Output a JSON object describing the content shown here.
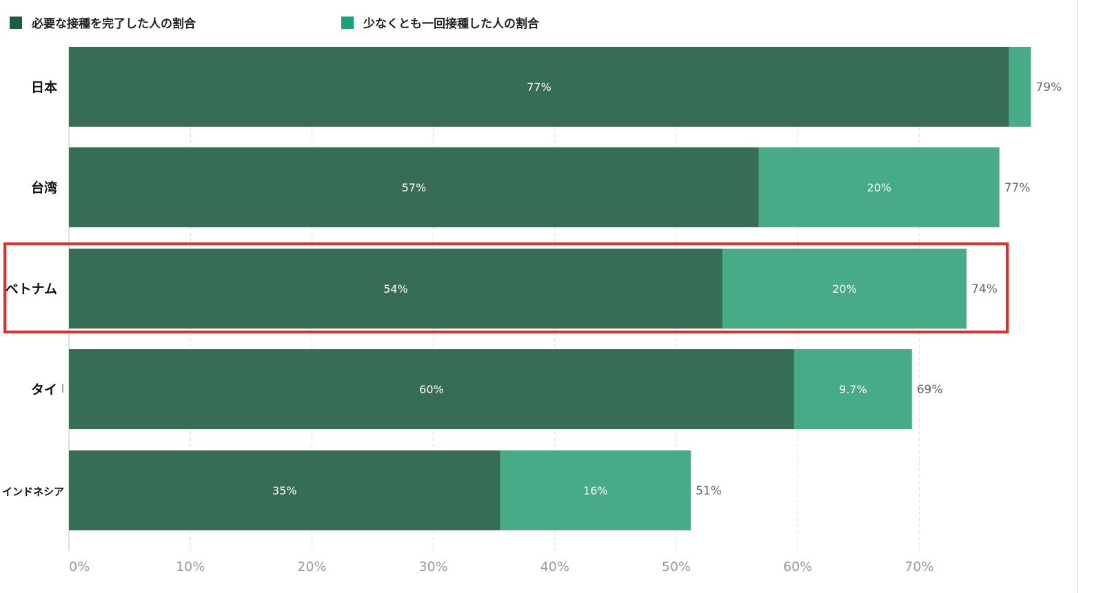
{
  "legend": [
    {
      "label": "必要な接種を完了した人の割合",
      "color": "#1b5e3f"
    },
    {
      "label": "少なくとも一回接種した人の割合",
      "color": "#18a37a"
    }
  ],
  "chart_data": {
    "type": "bar",
    "orientation": "horizontal",
    "stacked": true,
    "categories": [
      "日本",
      "台湾",
      "ベトナム",
      "タイ",
      "インドネシア"
    ],
    "series": [
      {
        "name": "必要な接種を完了した人の割合",
        "values": [
          77.4,
          56.8,
          53.8,
          59.7,
          35.5
        ],
        "labels": [
          "77%",
          "57%",
          "54%",
          "60%",
          "35%"
        ],
        "color": "#376d54"
      },
      {
        "name": "少なくとも一回接種した人の割合",
        "values": [
          1.8,
          19.8,
          20.1,
          9.7,
          15.7
        ],
        "labels": [
          "",
          "20%",
          "20%",
          "9.7%",
          "16%"
        ],
        "color": "#46ab86"
      }
    ],
    "totals": [
      "79%",
      "77%",
      "74%",
      "69%",
      "51%"
    ],
    "x_ticks": [
      "0%",
      "10%",
      "20%",
      "30%",
      "40%",
      "50%",
      "60%",
      "70%"
    ],
    "xlim": [
      0,
      80
    ],
    "grid": true,
    "highlighted_category": "ベトナム",
    "legend_position": "top-left"
  }
}
